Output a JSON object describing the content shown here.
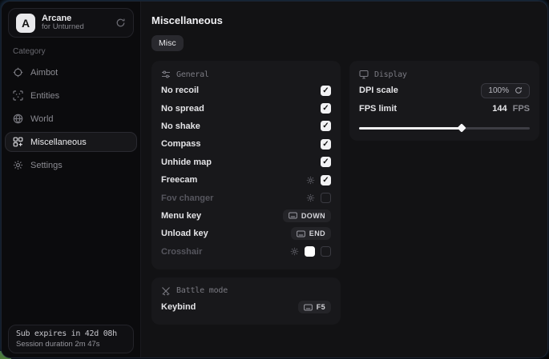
{
  "app": {
    "name": "Arcane",
    "subtitle": "for Unturned",
    "logo_letter": "A"
  },
  "sidebar": {
    "category_label": "Category",
    "items": [
      {
        "label": "Aimbot",
        "icon": "crosshair-icon",
        "active": false
      },
      {
        "label": "Entities",
        "icon": "entities-scan-icon",
        "active": false
      },
      {
        "label": "World",
        "icon": "globe-icon",
        "active": false
      },
      {
        "label": "Miscellaneous",
        "icon": "grid-icon",
        "active": true
      },
      {
        "label": "Settings",
        "icon": "gear-icon",
        "active": false
      }
    ],
    "footer": {
      "sub_expiry": "Sub expires in 42d 08h",
      "session_duration": "Session duration 2m 47s"
    }
  },
  "main": {
    "title": "Miscellaneous",
    "tabs": [
      {
        "label": "Misc",
        "active": true
      }
    ],
    "general": {
      "title": "General",
      "rows": [
        {
          "label": "No recoil",
          "type": "checkbox",
          "checked": true
        },
        {
          "label": "No spread",
          "type": "checkbox",
          "checked": true
        },
        {
          "label": "No shake",
          "type": "checkbox",
          "checked": true
        },
        {
          "label": "Compass",
          "type": "checkbox",
          "checked": true
        },
        {
          "label": "Unhide map",
          "type": "checkbox",
          "checked": true
        },
        {
          "label": "Freecam",
          "type": "checkbox",
          "checked": true,
          "has_settings": true
        },
        {
          "label": "Fov changer",
          "type": "checkbox",
          "checked": false,
          "has_settings": true,
          "disabled": true
        },
        {
          "label": "Menu key",
          "type": "keybind",
          "key": "DOWN"
        },
        {
          "label": "Unload key",
          "type": "keybind",
          "key": "END"
        },
        {
          "label": "Crosshair",
          "type": "checkbox",
          "checked": false,
          "has_settings": true,
          "disabled": true,
          "color": "#ffffff"
        }
      ]
    },
    "battle_mode": {
      "title": "Battle mode",
      "rows": [
        {
          "label": "Keybind",
          "type": "keybind",
          "key": "F5"
        }
      ]
    },
    "display": {
      "title": "Display",
      "rows": [
        {
          "label": "DPI scale",
          "type": "value",
          "value": "100%"
        },
        {
          "label": "FPS limit",
          "type": "slider",
          "value": "144",
          "unit": "FPS",
          "percent": 60
        }
      ]
    }
  },
  "colors": {
    "accent_border": "#3a6ca0",
    "checkbox_bg": "#f2f2f4",
    "crosshair_swatch": "#ffffff"
  }
}
